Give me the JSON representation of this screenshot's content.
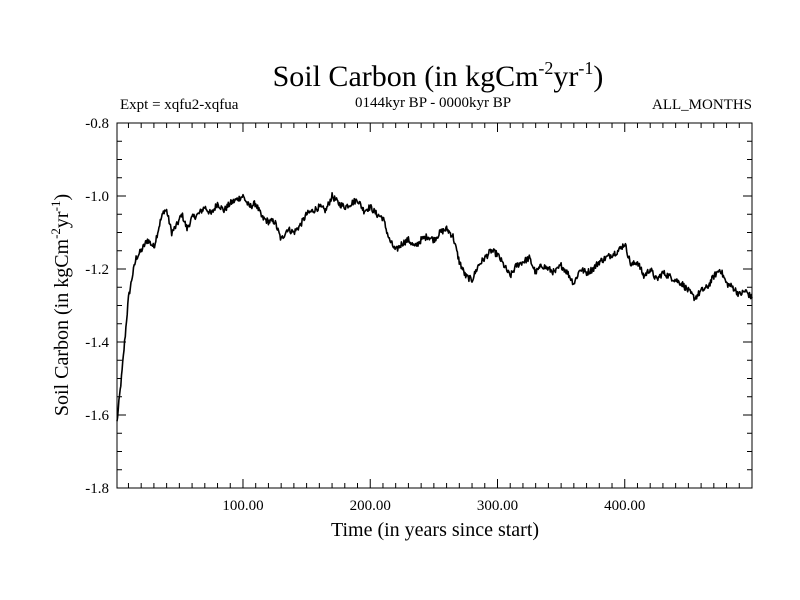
{
  "chart_data": {
    "type": "line",
    "title": "Soil Carbon (in kgCm",
    "title_sup1": "-2",
    "title_mid": "yr",
    "title_sup2": "-1",
    "title_end": ")",
    "subtitle_left": "Expt = xqfu2-xqfua",
    "subtitle_center": "0144kyr BP - 0000kyr BP",
    "subtitle_right": "ALL_MONTHS",
    "xlabel": "Time (in years since start)",
    "ylabel": "Soil Carbon (in kgCm",
    "ylabel_sup1": "-2",
    "ylabel_mid": "yr",
    "ylabel_sup2": "-1",
    "ylabel_end": ")",
    "xlim": [
      1,
      500
    ],
    "ylim": [
      -1.8,
      -0.8
    ],
    "xticks": [
      100,
      200,
      300,
      400
    ],
    "xtick_labels": [
      "100.00",
      "200.00",
      "300.00",
      "400.00"
    ],
    "yticks": [
      -1.8,
      -1.6,
      -1.4,
      -1.2,
      -1.0,
      -0.8
    ],
    "ytick_labels": [
      "-1.8",
      "-1.6",
      "-1.4",
      "-1.2",
      "-1.0",
      "-0.8"
    ],
    "series": [
      {
        "name": "Soil Carbon",
        "color": "#000000",
        "x": [
          1,
          5,
          8,
          10,
          13,
          16,
          20,
          25,
          30,
          35,
          38,
          40,
          44,
          48,
          52,
          56,
          60,
          65,
          70,
          75,
          80,
          85,
          90,
          95,
          100,
          105,
          110,
          115,
          120,
          125,
          130,
          135,
          140,
          145,
          150,
          155,
          160,
          165,
          170,
          175,
          180,
          185,
          190,
          195,
          200,
          205,
          210,
          215,
          220,
          225,
          230,
          235,
          240,
          245,
          250,
          255,
          260,
          265,
          270,
          275,
          280,
          285,
          290,
          295,
          300,
          305,
          310,
          315,
          320,
          325,
          330,
          335,
          340,
          345,
          350,
          355,
          360,
          365,
          370,
          375,
          380,
          385,
          390,
          395,
          400,
          405,
          410,
          415,
          420,
          425,
          430,
          435,
          440,
          445,
          450,
          455,
          460,
          465,
          470,
          475,
          480,
          485,
          490,
          495,
          500
        ],
        "values": [
          -1.62,
          -1.48,
          -1.36,
          -1.28,
          -1.22,
          -1.17,
          -1.15,
          -1.12,
          -1.14,
          -1.07,
          -1.04,
          -1.04,
          -1.1,
          -1.08,
          -1.05,
          -1.09,
          -1.06,
          -1.05,
          -1.03,
          -1.05,
          -1.02,
          -1.04,
          -1.02,
          -1.01,
          -1.0,
          -1.03,
          -1.02,
          -1.06,
          -1.07,
          -1.07,
          -1.12,
          -1.09,
          -1.1,
          -1.08,
          -1.05,
          -1.04,
          -1.03,
          -1.04,
          -1.0,
          -1.02,
          -1.03,
          -1.02,
          -1.01,
          -1.04,
          -1.03,
          -1.05,
          -1.06,
          -1.12,
          -1.15,
          -1.13,
          -1.12,
          -1.14,
          -1.12,
          -1.11,
          -1.12,
          -1.1,
          -1.09,
          -1.11,
          -1.18,
          -1.22,
          -1.23,
          -1.19,
          -1.17,
          -1.15,
          -1.16,
          -1.19,
          -1.22,
          -1.19,
          -1.18,
          -1.17,
          -1.21,
          -1.19,
          -1.2,
          -1.21,
          -1.19,
          -1.21,
          -1.24,
          -1.2,
          -1.21,
          -1.2,
          -1.18,
          -1.17,
          -1.16,
          -1.15,
          -1.13,
          -1.19,
          -1.18,
          -1.22,
          -1.2,
          -1.23,
          -1.21,
          -1.22,
          -1.23,
          -1.24,
          -1.26,
          -1.28,
          -1.26,
          -1.25,
          -1.22,
          -1.2,
          -1.24,
          -1.25,
          -1.27,
          -1.26,
          -1.28
        ]
      }
    ]
  }
}
